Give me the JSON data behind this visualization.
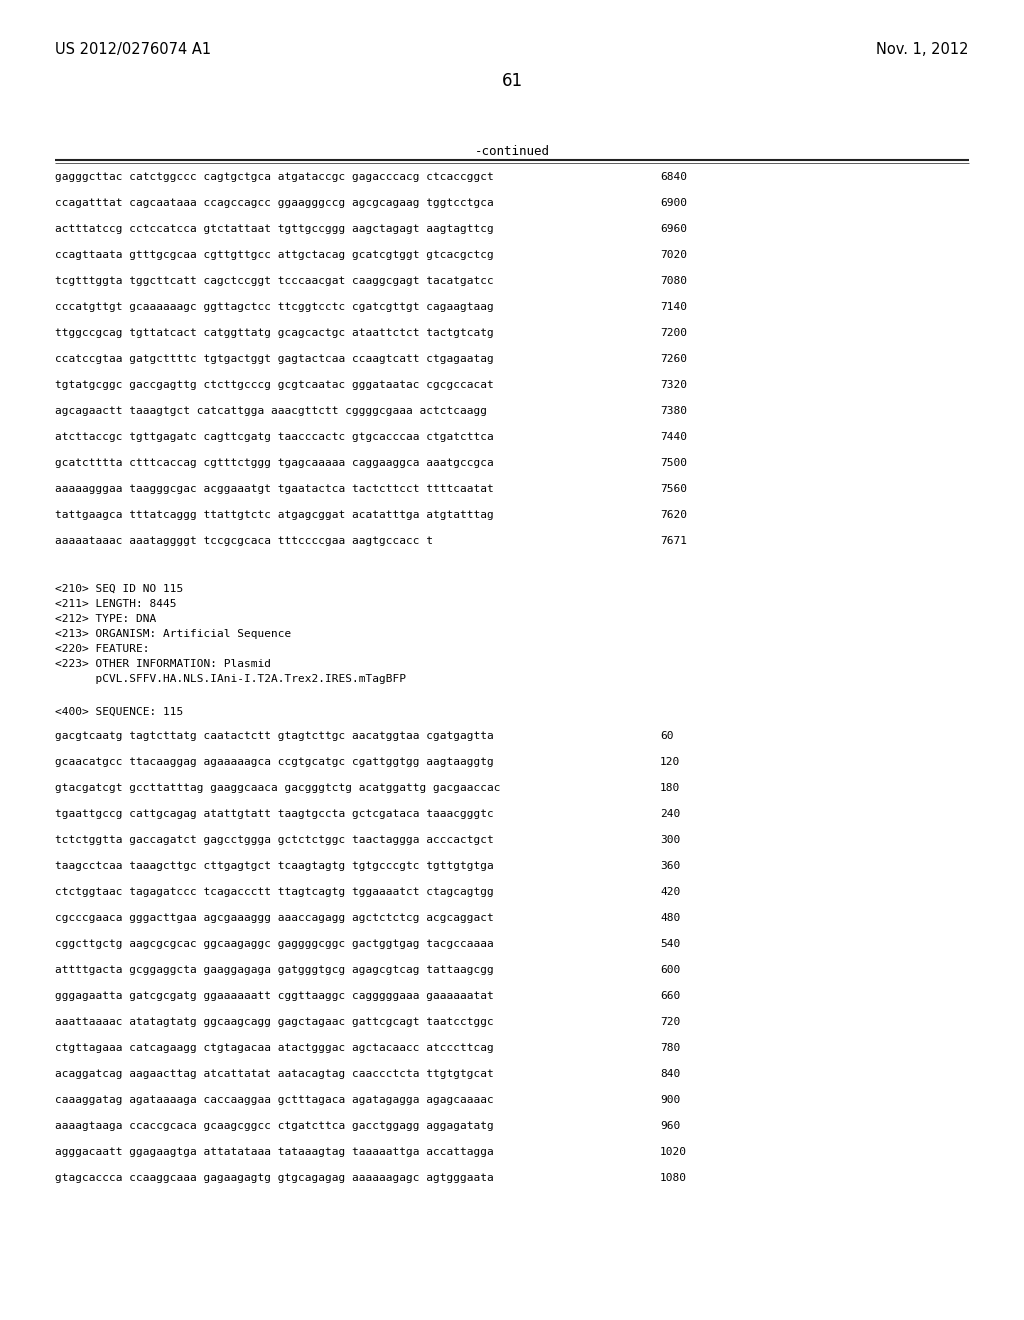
{
  "header_left": "US 2012/0276074 A1",
  "header_right": "Nov. 1, 2012",
  "page_number": "61",
  "continued_label": "-continued",
  "background_color": "#ffffff",
  "text_color": "#000000",
  "sequence_lines_top": [
    {
      "seq": "gagggcttac catctggccc cagtgctgca atgataccgc gagacccacg ctcaccggct",
      "num": "6840"
    },
    {
      "seq": "ccagatttat cagcaataaa ccagccagcc ggaagggccg agcgcagaag tggtcctgca",
      "num": "6900"
    },
    {
      "seq": "actttatccg cctccatcca gtctattaat tgttgccggg aagctagagt aagtagttcg",
      "num": "6960"
    },
    {
      "seq": "ccagttaata gtttgcgcaa cgttgttgcc attgctacag gcatcgtggt gtcacgctcg",
      "num": "7020"
    },
    {
      "seq": "tcgtttggta tggcttcatt cagctccggt tcccaacgat caaggcgagt tacatgatcc",
      "num": "7080"
    },
    {
      "seq": "cccatgttgt gcaaaaaagc ggttagctcc ttcggtcctc cgatcgttgt cagaagtaag",
      "num": "7140"
    },
    {
      "seq": "ttggccgcag tgttatcact catggttatg gcagcactgc ataattctct tactgtcatg",
      "num": "7200"
    },
    {
      "seq": "ccatccgtaa gatgcttttc tgtgactggt gagtactcaa ccaagtcatt ctgagaatag",
      "num": "7260"
    },
    {
      "seq": "tgtatgcggc gaccgagttg ctcttgcccg gcgtcaatac gggataatac cgcgccacat",
      "num": "7320"
    },
    {
      "seq": "agcagaactt taaagtgct catcattgga aaacgttctt cggggcgaaa actctcaagg",
      "num": "7380"
    },
    {
      "seq": "atcttaccgc tgttgagatc cagttcgatg taacccactc gtgcacccaa ctgatcttca",
      "num": "7440"
    },
    {
      "seq": "gcatctttta ctttcaccag cgtttctggg tgagcaaaaa caggaaggca aaatgccgca",
      "num": "7500"
    },
    {
      "seq": "aaaaagggaa taagggcgac acggaaatgt tgaatactca tactcttcct ttttcaatat",
      "num": "7560"
    },
    {
      "seq": "tattgaagca tttatcaggg ttattgtctc atgagcggat acatatttga atgtatttag",
      "num": "7620"
    },
    {
      "seq": "aaaaataaac aaataggggt tccgcgcaca tttccccgaa aagtgccacc t",
      "num": "7671"
    }
  ],
  "metadata_lines": [
    "<210> SEQ ID NO 115",
    "<211> LENGTH: 8445",
    "<212> TYPE: DNA",
    "<213> ORGANISM: Artificial Sequence",
    "<220> FEATURE:",
    "<223> OTHER INFORMATION: Plasmid",
    "      pCVL.SFFV.HA.NLS.IAni-I.T2A.Trex2.IRES.mTagBFP"
  ],
  "sequence_400_label": "<400> SEQUENCE: 115",
  "sequence_lines_bottom": [
    {
      "seq": "gacgtcaatg tagtcttatg caatactctt gtagtcttgc aacatggtaa cgatgagtta",
      "num": "60"
    },
    {
      "seq": "gcaacatgcc ttacaaggag agaaaaagca ccgtgcatgc cgattggtgg aagtaaggtg",
      "num": "120"
    },
    {
      "seq": "gtacgatcgt gccttatttag gaaggcaaca gacgggtctg acatggattg gacgaaccac",
      "num": "180"
    },
    {
      "seq": "tgaattgccg cattgcagag atattgtatt taagtgccta gctcgataca taaacgggtc",
      "num": "240"
    },
    {
      "seq": "tctctggtta gaccagatct gagcctggga gctctctggc taactaggga acccactgct",
      "num": "300"
    },
    {
      "seq": "taagcctcaa taaagcttgc cttgagtgct tcaagtagtg tgtgcccgtc tgttgtgtga",
      "num": "360"
    },
    {
      "seq": "ctctggtaac tagagatccc tcagaccctt ttagtcagtg tggaaaatct ctagcagtgg",
      "num": "420"
    },
    {
      "seq": "cgcccgaaca gggacttgaa agcgaaaggg aaaccagagg agctctctcg acgcaggact",
      "num": "480"
    },
    {
      "seq": "cggcttgctg aagcgcgcac ggcaagaggc gaggggcggc gactggtgag tacgccaaaa",
      "num": "540"
    },
    {
      "seq": "attttgacta gcggaggcta gaaggagaga gatgggtgcg agagcgtcag tattaagcgg",
      "num": "600"
    },
    {
      "seq": "gggagaatta gatcgcgatg ggaaaaaatt cggttaaggc cagggggaaa gaaaaaatat",
      "num": "660"
    },
    {
      "seq": "aaattaaaac atatagtatg ggcaagcagg gagctagaac gattcgcagt taatcctggc",
      "num": "720"
    },
    {
      "seq": "ctgttagaaa catcagaagg ctgtagacaa atactgggac agctacaacc atcccttcag",
      "num": "780"
    },
    {
      "seq": "acaggatcag aagaacttag atcattatat aatacagtag caaccctcta ttgtgtgcat",
      "num": "840"
    },
    {
      "seq": "caaaggatag agataaaaga caccaaggaa gctttagaca agatagagga agagcaaaac",
      "num": "900"
    },
    {
      "seq": "aaaagtaaga ccaccgcaca gcaagcggcc ctgatcttca gacctggagg aggagatatg",
      "num": "960"
    },
    {
      "seq": "agggacaatt ggagaagtga attatataaa tataaagtag taaaaattga accattagga",
      "num": "1020"
    },
    {
      "seq": "gtagcaccca ccaaggcaaa gagaagagtg gtgcagagag aaaaaagagc agtgggaata",
      "num": "1080"
    }
  ]
}
